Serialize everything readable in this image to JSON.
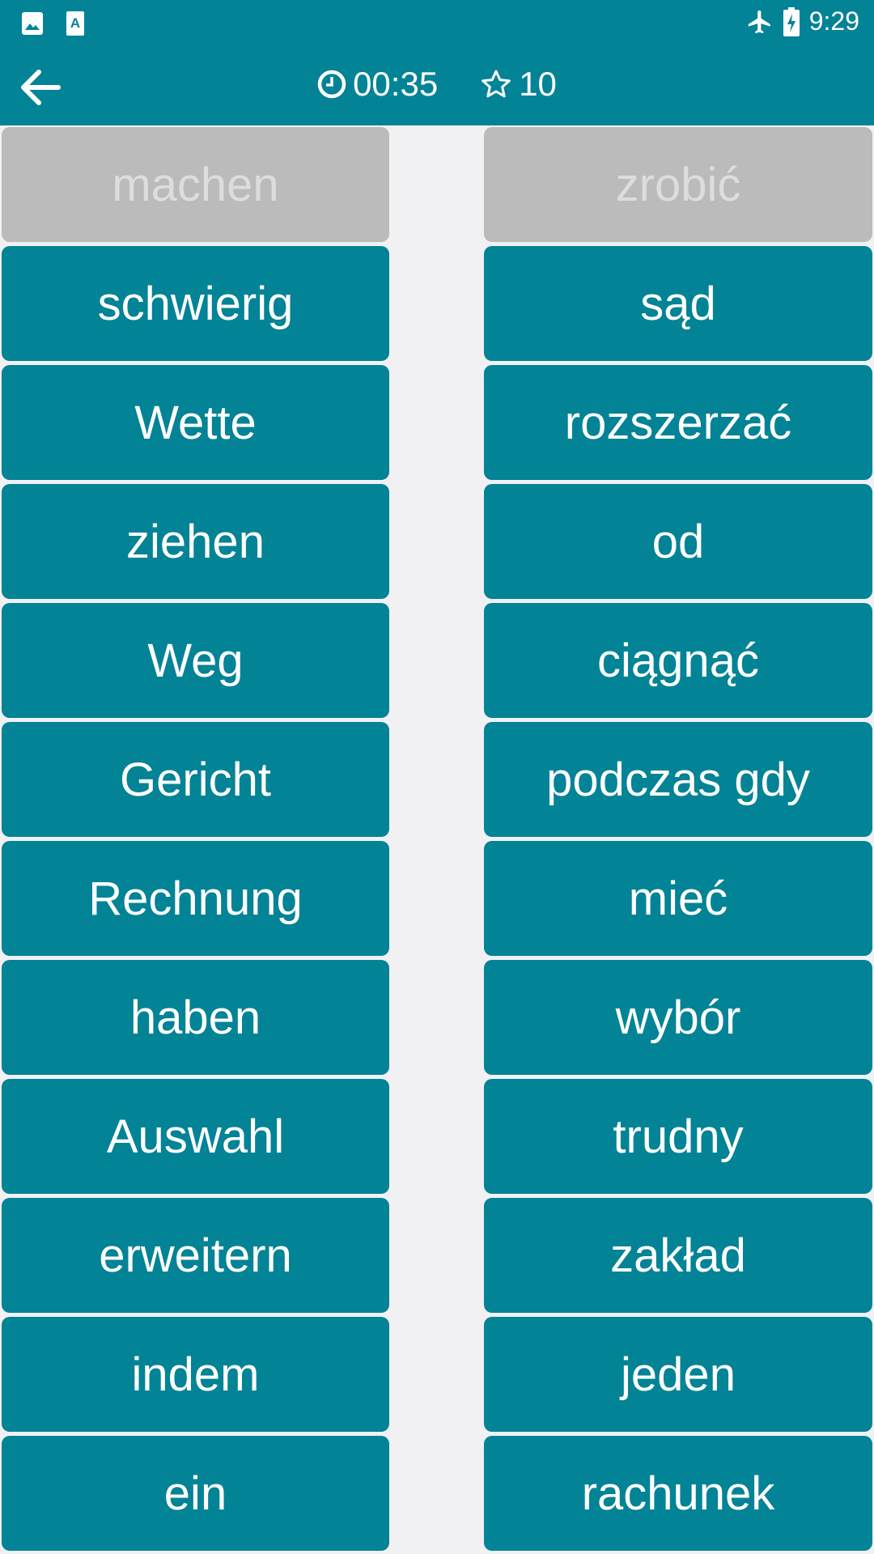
{
  "status_bar": {
    "time": "9:29",
    "icons": [
      "image-icon",
      "font-download-icon",
      "airplane-icon",
      "battery-charging-icon"
    ]
  },
  "toolbar": {
    "timer": "00:35",
    "score": "10",
    "icons": [
      "back-arrow-icon",
      "clock-icon",
      "star-outline-icon"
    ]
  },
  "colors": {
    "primary": "#038396",
    "matched": "#bcbbbb",
    "background": "#f1f1f3"
  },
  "left_words": [
    {
      "text": "machen",
      "matched": true
    },
    {
      "text": "schwierig"
    },
    {
      "text": "Wette"
    },
    {
      "text": "ziehen"
    },
    {
      "text": "Weg"
    },
    {
      "text": "Gericht"
    },
    {
      "text": "Rechnung"
    },
    {
      "text": "haben"
    },
    {
      "text": "Auswahl"
    },
    {
      "text": "erweitern"
    },
    {
      "text": "indem"
    },
    {
      "text": "ein"
    }
  ],
  "right_words": [
    {
      "text": "zrobić",
      "matched": true
    },
    {
      "text": "sąd"
    },
    {
      "text": "rozszerzać"
    },
    {
      "text": "od"
    },
    {
      "text": "ciągnąć"
    },
    {
      "text": "podczas gdy"
    },
    {
      "text": "mieć"
    },
    {
      "text": "wybór"
    },
    {
      "text": "trudny"
    },
    {
      "text": "zakład"
    },
    {
      "text": "jeden"
    },
    {
      "text": "rachunek"
    }
  ]
}
